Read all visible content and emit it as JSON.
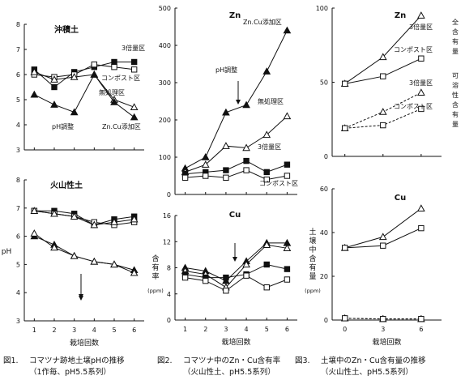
{
  "captions": [
    {
      "label": "図1.",
      "line1": "コマツナ跡地土壌pHの推移",
      "line2": "（1作毎、pH5.5系列）"
    },
    {
      "label": "図2.",
      "line1": "コマツナ中のZn・Cu含有率",
      "line2": "（火山性土、pH5.5系列）"
    },
    {
      "label": "図3.",
      "line1": "土壌中のZn・Cu含有量の推移",
      "line2": "（火山性土、pH5.5系列）"
    }
  ],
  "chart_data": [
    {
      "id": "p1a",
      "type": "line",
      "title": "沖積土",
      "xlabel": "",
      "ylabel": "",
      "x": [
        1,
        2,
        3,
        4,
        5,
        6
      ],
      "ylim": [
        3,
        8
      ],
      "yticks": [
        "3",
        "4",
        "5",
        "6",
        "7",
        "8"
      ],
      "xticks": [
        "",
        "",
        "",
        "",
        "",
        ""
      ],
      "series": [
        {
          "name": "3倍量区",
          "marker": "square-filled",
          "dash": false,
          "values": [
            6.2,
            5.5,
            6.1,
            6.3,
            6.5,
            6.5
          ]
        },
        {
          "name": "コンポスト区",
          "marker": "square-open",
          "dash": false,
          "values": [
            6.0,
            5.9,
            6.0,
            6.4,
            6.3,
            6.2
          ]
        },
        {
          "name": "無処理区",
          "marker": "triangle-open",
          "dash": false,
          "values": [
            6.1,
            5.8,
            5.9,
            6.0,
            5.0,
            4.7
          ]
        },
        {
          "name": "Zn.Cu添加区",
          "marker": "triangle-filled",
          "dash": false,
          "values": [
            5.2,
            4.8,
            4.5,
            6.0,
            4.9,
            4.3
          ]
        }
      ],
      "annotations": [
        {
          "text": "pH調整",
          "x": 3.6,
          "y": 3.9
        }
      ]
    },
    {
      "id": "p1b",
      "type": "line",
      "title": "火山性土",
      "xlabel": "栽培回数",
      "ylabel": "pH",
      "x": [
        1,
        2,
        3,
        4,
        5,
        6
      ],
      "ylim": [
        3,
        8
      ],
      "yticks": [
        "3",
        "4",
        "5",
        "6",
        "7",
        "8"
      ],
      "xticks": [
        "1",
        "2",
        "3",
        "4",
        "5",
        "6"
      ],
      "series": [
        {
          "name": "",
          "marker": "square-filled",
          "dash": false,
          "values": [
            6.9,
            6.9,
            6.8,
            6.4,
            6.6,
            6.7
          ]
        },
        {
          "name": "",
          "marker": "square-open",
          "dash": false,
          "values": [
            6.9,
            6.8,
            6.7,
            6.5,
            6.4,
            6.5
          ]
        },
        {
          "name": "",
          "marker": "triangle-open",
          "dash": false,
          "values": [
            6.9,
            6.8,
            6.7,
            6.4,
            6.5,
            6.6
          ]
        },
        {
          "name": "",
          "marker": "triangle-filled",
          "dash": false,
          "values": [
            6.0,
            5.7,
            5.3,
            5.1,
            5.0,
            4.8
          ]
        },
        {
          "name": "",
          "marker": "triangle-open",
          "dash": false,
          "values": [
            6.1,
            5.6,
            5.3,
            5.1,
            5.0,
            4.7
          ]
        }
      ],
      "annotations": []
    },
    {
      "id": "p2a",
      "type": "line",
      "title": "Zn",
      "xlabel": "",
      "ylabel": "",
      "x": [
        1,
        2,
        3,
        4,
        5,
        6
      ],
      "ylim": [
        0,
        500
      ],
      "yticks": [
        "0",
        "100",
        "200",
        "300",
        "400",
        "500"
      ],
      "xticks": [
        "",
        "",
        "",
        "",
        "",
        ""
      ],
      "series": [
        {
          "name": "Zn.Cu添加区",
          "marker": "triangle-filled",
          "dash": false,
          "values": [
            70,
            100,
            220,
            240,
            330,
            440
          ]
        },
        {
          "name": "無処理区",
          "marker": "triangle-open",
          "dash": false,
          "values": [
            60,
            80,
            130,
            125,
            160,
            210
          ]
        },
        {
          "name": "3倍量区",
          "marker": "square-filled",
          "dash": false,
          "values": [
            55,
            60,
            65,
            90,
            60,
            80
          ]
        },
        {
          "name": "コンポスト区",
          "marker": "square-open",
          "dash": false,
          "values": [
            45,
            50,
            45,
            65,
            40,
            50
          ]
        }
      ],
      "annotations": [
        {
          "text": "pH調整",
          "x": 4.0,
          "y": 330
        }
      ]
    },
    {
      "id": "p2b",
      "type": "line",
      "title": "Cu",
      "xlabel": "栽培回数",
      "ylabel": "含有率",
      "yunit": "(ppm)",
      "x": [
        1,
        2,
        3,
        4,
        5,
        6
      ],
      "ylim": [
        0,
        16
      ],
      "yticks": [
        "0",
        "4",
        "8",
        "12",
        "16"
      ],
      "xticks": [
        "1",
        "2",
        "3",
        "4",
        "5",
        "6"
      ],
      "series": [
        {
          "name": "",
          "marker": "triangle-filled",
          "dash": false,
          "values": [
            8.0,
            7.5,
            6.0,
            9.0,
            11.8,
            11.8
          ]
        },
        {
          "name": "",
          "marker": "triangle-open",
          "dash": false,
          "values": [
            7.5,
            7.0,
            5.0,
            8.5,
            11.5,
            11.0
          ]
        },
        {
          "name": "",
          "marker": "square-filled",
          "dash": false,
          "values": [
            7.0,
            6.5,
            6.5,
            7.0,
            8.5,
            7.8
          ]
        },
        {
          "name": "",
          "marker": "square-open",
          "dash": false,
          "values": [
            6.5,
            6.0,
            4.5,
            6.8,
            5.0,
            6.2
          ]
        }
      ],
      "annotations": []
    },
    {
      "id": "p3a",
      "type": "line",
      "title": "Zn",
      "xlabel": "",
      "ylabel": "",
      "x": [
        0,
        3,
        6
      ],
      "xlim": [
        -1,
        7.6
      ],
      "ylim": [
        0,
        100
      ],
      "yticks": [
        "0",
        "50",
        "100"
      ],
      "xticks": [
        "",
        "",
        ""
      ],
      "right_labels": [
        "全含有量",
        "可溶性含有量"
      ],
      "series": [
        {
          "name": "3倍量区",
          "marker": "triangle-open",
          "dash": false,
          "values": [
            49,
            67,
            95
          ]
        },
        {
          "name": "コンポスト区",
          "marker": "square-open",
          "dash": false,
          "values": [
            49,
            54,
            66
          ]
        },
        {
          "name": "3倍量区",
          "marker": "triangle-open",
          "dash": true,
          "values": [
            19,
            30,
            43
          ]
        },
        {
          "name": "コンポスト区",
          "marker": "square-open",
          "dash": true,
          "values": [
            19,
            21,
            32
          ]
        }
      ],
      "annotations": []
    },
    {
      "id": "p3b",
      "type": "line",
      "title": "Cu",
      "xlabel": "栽培回数",
      "ylabel": "土壌中含有量",
      "yunit": "(ppm)",
      "x": [
        0,
        3,
        6
      ],
      "xlim": [
        -1,
        7.6
      ],
      "ylim": [
        0,
        60
      ],
      "yticks": [
        "0",
        "20",
        "40",
        "60"
      ],
      "xticks": [
        "0",
        "3",
        "6"
      ],
      "series": [
        {
          "name": "",
          "marker": "triangle-open",
          "dash": false,
          "values": [
            33,
            38,
            51
          ]
        },
        {
          "name": "",
          "marker": "square-open",
          "dash": false,
          "values": [
            33,
            34,
            42
          ]
        },
        {
          "name": "",
          "marker": "triangle-open",
          "dash": true,
          "values": [
            0.8,
            0.5,
            0.5
          ]
        },
        {
          "name": "",
          "marker": "square-open",
          "dash": true,
          "values": [
            0.8,
            0.5,
            0.5
          ]
        }
      ],
      "annotations": []
    }
  ]
}
